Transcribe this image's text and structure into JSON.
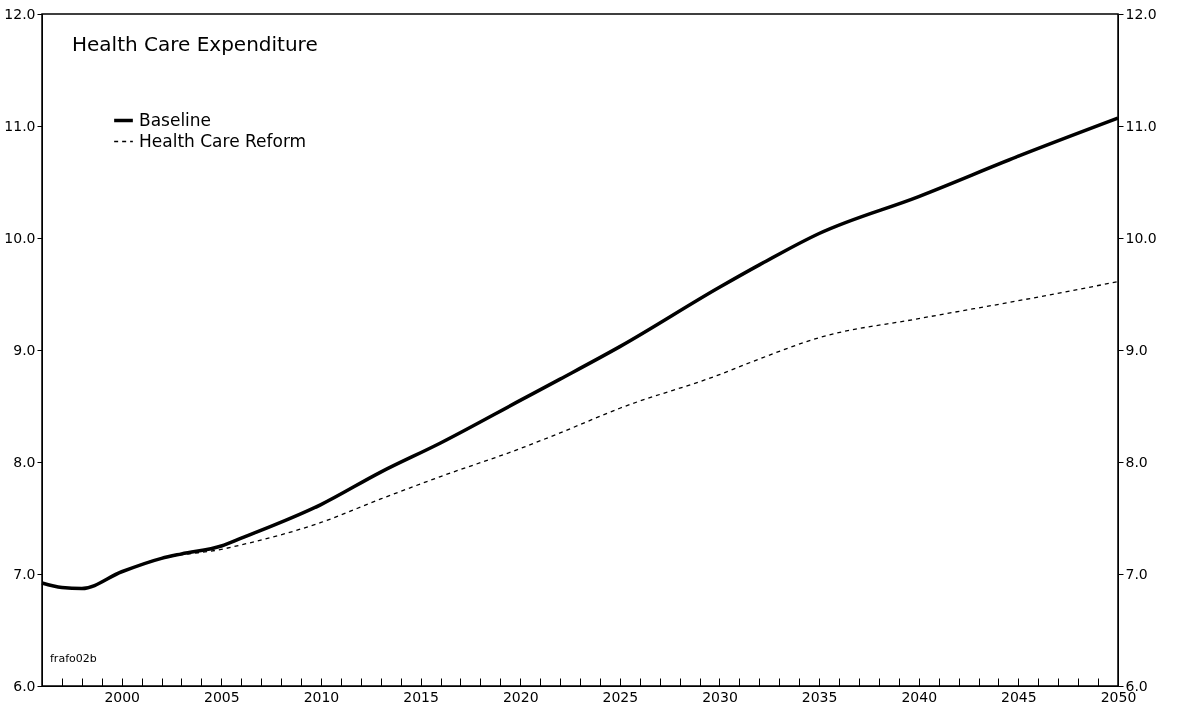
{
  "chart_data": {
    "type": "line",
    "title": "Health Care Expenditure",
    "x": [
      1996,
      1997,
      1998,
      2000,
      2002,
      2003,
      2005,
      2006,
      2010,
      2013,
      2016,
      2020,
      2022,
      2025,
      2030,
      2032,
      2035,
      2040,
      2045,
      2050
    ],
    "series": [
      {
        "name": "Baseline",
        "color": "#000000",
        "line_style": "solid",
        "values": [
          6.92,
          6.88,
          6.87,
          7.02,
          7.14,
          7.18,
          7.25,
          7.32,
          7.62,
          7.91,
          8.17,
          8.55,
          8.74,
          9.03,
          9.56,
          9.76,
          10.04,
          10.37,
          10.73,
          11.07
        ]
      },
      {
        "name": "Health Care Reform",
        "color": "#000000",
        "line_style": "dashed",
        "values": [
          6.92,
          6.88,
          6.87,
          7.02,
          7.14,
          7.17,
          7.22,
          7.26,
          7.46,
          7.67,
          7.87,
          8.12,
          8.26,
          8.48,
          8.78,
          8.92,
          9.11,
          9.28,
          9.44,
          9.61
        ]
      }
    ],
    "xlim": [
      1996,
      2050
    ],
    "xticks": [
      {
        "value": 1996,
        "label": null
      },
      {
        "value": 1997,
        "label": null
      },
      {
        "value": 1998,
        "label": null
      },
      {
        "value": 1999,
        "label": null
      },
      2000,
      {
        "value": 2001,
        "label": null
      },
      {
        "value": 2002,
        "label": null
      },
      {
        "value": 2003,
        "label": null
      },
      {
        "value": 2004,
        "label": null
      },
      2005,
      {
        "value": 2006,
        "label": null
      },
      {
        "value": 2007,
        "label": null
      },
      {
        "value": 2008,
        "label": null
      },
      {
        "value": 2009,
        "label": null
      },
      2010,
      {
        "value": 2011,
        "label": null
      },
      {
        "value": 2012,
        "label": null
      },
      {
        "value": 2013,
        "label": null
      },
      {
        "value": 2014,
        "label": null
      },
      2015,
      {
        "value": 2016,
        "label": null
      },
      {
        "value": 2017,
        "label": null
      },
      {
        "value": 2018,
        "label": null
      },
      {
        "value": 2019,
        "label": null
      },
      2020,
      {
        "value": 2021,
        "label": null
      },
      {
        "value": 2022,
        "label": null
      },
      {
        "value": 2023,
        "label": null
      },
      {
        "value": 2024,
        "label": null
      },
      2025,
      {
        "value": 2026,
        "label": null
      },
      {
        "value": 2027,
        "label": null
      },
      {
        "value": 2028,
        "label": null
      },
      {
        "value": 2029,
        "label": null
      },
      2030,
      {
        "value": 2031,
        "label": null
      },
      {
        "value": 2032,
        "label": null
      },
      {
        "value": 2033,
        "label": null
      },
      {
        "value": 2034,
        "label": null
      },
      2035,
      {
        "value": 2036,
        "label": null
      },
      {
        "value": 2037,
        "label": null
      },
      {
        "value": 2038,
        "label": null
      },
      {
        "value": 2039,
        "label": null
      },
      2040,
      {
        "value": 2041,
        "label": null
      },
      {
        "value": 2042,
        "label": null
      },
      {
        "value": 2043,
        "label": null
      },
      {
        "value": 2044,
        "label": null
      },
      2045,
      {
        "value": 2046,
        "label": null
      },
      {
        "value": 2047,
        "label": null
      },
      {
        "value": 2048,
        "label": null
      },
      {
        "value": 2049,
        "label": null
      },
      2050
    ],
    "ylim": [
      6,
      12
    ],
    "yticks": [
      {
        "value": 6,
        "label": "6.0"
      },
      {
        "value": 7,
        "label": "7.0"
      },
      {
        "value": 8,
        "label": "8.0"
      },
      {
        "value": 9,
        "label": "9.0"
      },
      {
        "value": 10,
        "label": "10.0"
      },
      {
        "value": 11,
        "label": "11.0"
      },
      {
        "value": 12,
        "label": "12.0"
      }
    ],
    "y2lim": [
      6,
      12
    ],
    "y2ticks": [
      {
        "value": 6,
        "label": "6.0"
      },
      {
        "value": 7,
        "label": "7.0"
      },
      {
        "value": 8,
        "label": "8.0"
      },
      {
        "value": 9,
        "label": "9.0"
      },
      {
        "value": 10,
        "label": "10.0"
      },
      {
        "value": 11,
        "label": "11.0"
      },
      {
        "value": 12,
        "label": "12.0"
      }
    ],
    "legend": "top left",
    "grid": false,
    "annotations": [
      "frafo02b"
    ]
  }
}
